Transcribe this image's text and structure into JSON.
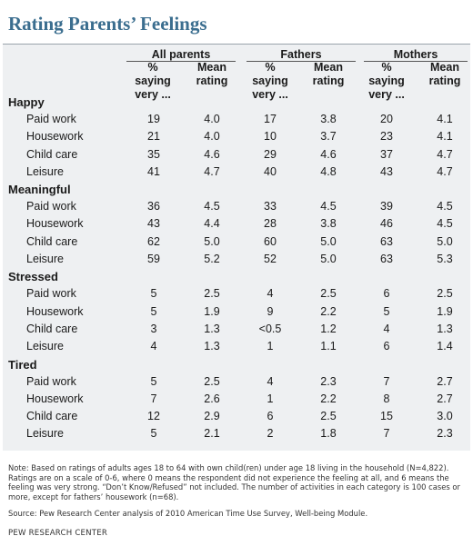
{
  "title": "Rating Parents’ Feelings",
  "groups": [
    "All parents",
    "Fathers",
    "Mothers"
  ],
  "subheaders": {
    "pct": [
      "%",
      "saying",
      "very ..."
    ],
    "mean": [
      "Mean",
      "rating"
    ]
  },
  "sections": [
    {
      "name": "Happy",
      "rows": [
        {
          "label": "Paid work",
          "values": [
            "19",
            "4.0",
            "17",
            "3.8",
            "20",
            "4.1"
          ]
        },
        {
          "label": "Housework",
          "values": [
            "21",
            "4.0",
            "10",
            "3.7",
            "23",
            "4.1"
          ]
        },
        {
          "label": "Child care",
          "values": [
            "35",
            "4.6",
            "29",
            "4.6",
            "37",
            "4.7"
          ]
        },
        {
          "label": "Leisure",
          "values": [
            "41",
            "4.7",
            "40",
            "4.8",
            "43",
            "4.7"
          ]
        }
      ]
    },
    {
      "name": "Meaningful",
      "rows": [
        {
          "label": "Paid work",
          "values": [
            "36",
            "4.5",
            "33",
            "4.5",
            "39",
            "4.5"
          ]
        },
        {
          "label": "Housework",
          "values": [
            "43",
            "4.4",
            "28",
            "3.8",
            "46",
            "4.5"
          ]
        },
        {
          "label": "Child care",
          "values": [
            "62",
            "5.0",
            "60",
            "5.0",
            "63",
            "5.0"
          ]
        },
        {
          "label": "Leisure",
          "values": [
            "59",
            "5.2",
            "52",
            "5.0",
            "63",
            "5.3"
          ]
        }
      ]
    },
    {
      "name": "Stressed",
      "rows": [
        {
          "label": "Paid work",
          "values": [
            "5",
            "2.5",
            "4",
            "2.5",
            "6",
            "2.5"
          ]
        },
        {
          "label": "Housework",
          "values": [
            "5",
            "1.9",
            "9",
            "2.2",
            "5",
            "1.9"
          ]
        },
        {
          "label": "Child care",
          "values": [
            "3",
            "1.3",
            "<0.5",
            "1.2",
            "4",
            "1.3"
          ]
        },
        {
          "label": "Leisure",
          "values": [
            "4",
            "1.3",
            "1",
            "1.1",
            "6",
            "1.4"
          ]
        }
      ]
    },
    {
      "name": "Tired",
      "rows": [
        {
          "label": "Paid work",
          "values": [
            "5",
            "2.5",
            "4",
            "2.3",
            "7",
            "2.7"
          ]
        },
        {
          "label": "Housework",
          "values": [
            "7",
            "2.6",
            "1",
            "2.2",
            "8",
            "2.7"
          ]
        },
        {
          "label": "Child care",
          "values": [
            "12",
            "2.9",
            "6",
            "2.5",
            "15",
            "3.0"
          ]
        },
        {
          "label": "Leisure",
          "values": [
            "5",
            "2.1",
            "2",
            "1.8",
            "7",
            "2.3"
          ]
        }
      ]
    }
  ],
  "note": "Note: Based on ratings of adults ages 18 to 64 with own child(ren) under age 18 living in the household (N=4,822). Ratings are on a scale of 0-6, where 0 means the respondent did not experience the feeling at all, and 6 means the feeling was very strong. “Don’t Know/Refused” not included. The number of activities in each category is 100 cases or more, except for fathers’ housework (n=68).",
  "source": "Source: Pew Research Center analysis of 2010 American Time Use Survey, Well-being Module.",
  "footer": "PEW RESEARCH CENTER"
}
